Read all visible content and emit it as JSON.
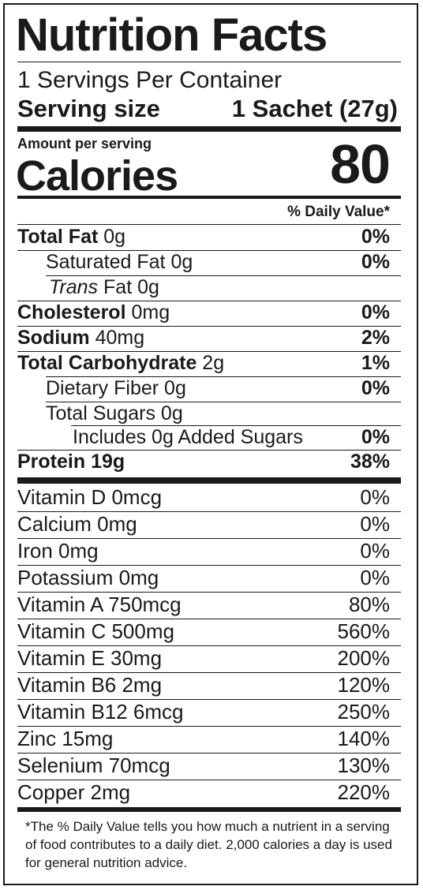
{
  "title": "Nutrition Facts",
  "servings_per_container": "1 Servings Per Container",
  "serving_size": {
    "label": "Serving size",
    "value": "1 Sachet (27g)"
  },
  "amount_per_serving": "Amount per serving",
  "calories": {
    "label": "Calories",
    "value": "80"
  },
  "dv_header": "% Daily Value*",
  "nutrients": [
    {
      "name": "Total Fat",
      "amount": "0g",
      "dv": "0%"
    },
    {
      "name": "Saturated Fat",
      "amount": "0g",
      "dv": "0%"
    },
    {
      "name": "Trans",
      "name2": "Fat",
      "amount": "0g",
      "dv": ""
    },
    {
      "name": "Cholesterol",
      "amount": "0mg",
      "dv": "0%"
    },
    {
      "name": "Sodium",
      "amount": "40mg",
      "dv": "2%"
    },
    {
      "name": "Total Carbohydrate",
      "amount": "2g",
      "dv": "1%"
    },
    {
      "name": "Dietary Fiber",
      "amount": "0g",
      "dv": "0%"
    },
    {
      "name": "Total Sugars",
      "amount": "0g",
      "dv": ""
    },
    {
      "name": "Includes 0g Added Sugars",
      "amount": "",
      "dv": "0%"
    },
    {
      "name": "Protein 19g",
      "amount": "",
      "dv": "38%"
    }
  ],
  "vitamins": [
    {
      "name": "Vitamin D 0mcg",
      "dv": "0%"
    },
    {
      "name": "Calcium 0mg",
      "dv": "0%"
    },
    {
      "name": "Iron 0mg",
      "dv": "0%"
    },
    {
      "name": "Potassium 0mg",
      "dv": "0%"
    },
    {
      "name": "Vitamin A 750mcg",
      "dv": "80%"
    },
    {
      "name": "Vitamin C 500mg",
      "dv": "560%"
    },
    {
      "name": "Vitamin E 30mg",
      "dv": "200%"
    },
    {
      "name": "Vitamin B6 2mg",
      "dv": "120%"
    },
    {
      "name": "Vitamin B12 6mcg",
      "dv": "250%"
    },
    {
      "name": "Zinc 15mg",
      "dv": "140%"
    },
    {
      "name": "Selenium 70mcg",
      "dv": "130%"
    },
    {
      "name": "Copper 2mg",
      "dv": "220%"
    }
  ],
  "footnote": "*The % Daily Value tells you how much a nutrient in a serving of food contributes to a daily diet. 2,000 calories a day is used for general nutrition advice."
}
